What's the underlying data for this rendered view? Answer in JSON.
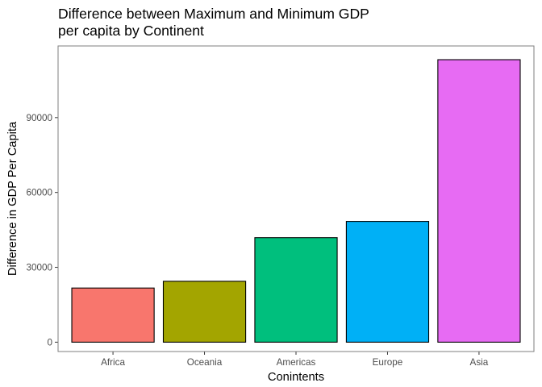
{
  "chart_data": {
    "type": "bar",
    "title": [
      "Difference between Maximum and Minimum GDP",
      "per capita by Continent"
    ],
    "xlabel": "Conintents",
    "ylabel": "Difference in GDP Per Capita",
    "categories": [
      "Africa",
      "Oceania",
      "Americas",
      "Europe",
      "Asia"
    ],
    "values": [
      21700,
      24400,
      41900,
      48400,
      113200
    ],
    "colors": [
      "#F8766D",
      "#A3A500",
      "#00BF7D",
      "#00B0F6",
      "#E76BF3"
    ],
    "bar_outline_color": "#000000",
    "ylim": [
      -3750,
      118700
    ],
    "yticks": [
      0,
      30000,
      60000,
      90000
    ],
    "ytick_labels": [
      "0",
      "30000",
      "60000",
      "90000"
    ],
    "grid": false,
    "legend": "none"
  }
}
